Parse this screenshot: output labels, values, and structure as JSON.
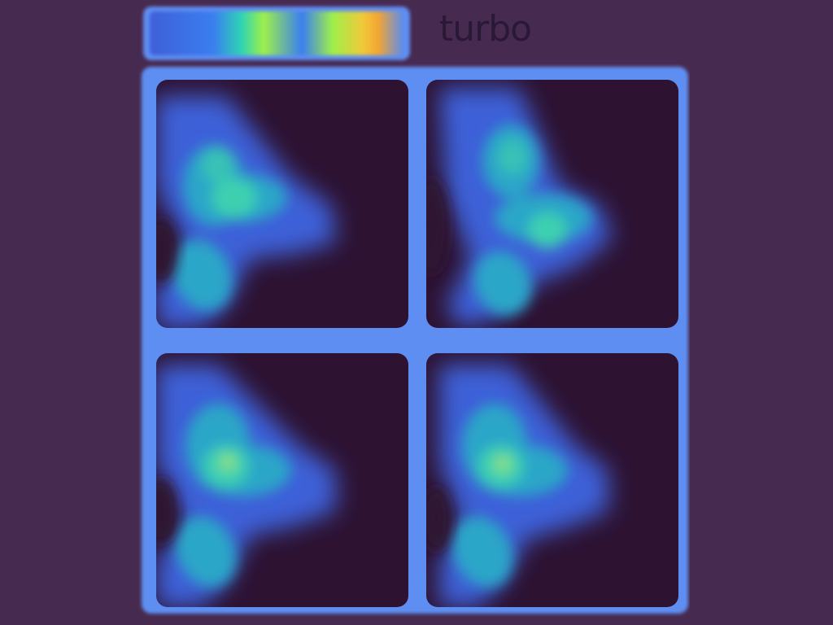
{
  "colormap": {
    "label": "turbo",
    "stops": [
      "#3f5fd8",
      "#3a7ef0",
      "#2ed3b6",
      "#9ef04a",
      "#f1c93a",
      "#f4a632",
      "#5a8cf0"
    ]
  },
  "colors": {
    "background": "#472a50",
    "frame": "#5f8ef2",
    "panel": "#2d1232",
    "label": "#2a1837"
  },
  "panels": [
    {
      "id": "top-left"
    },
    {
      "id": "top-right"
    },
    {
      "id": "bottom-left"
    },
    {
      "id": "bottom-right"
    }
  ]
}
